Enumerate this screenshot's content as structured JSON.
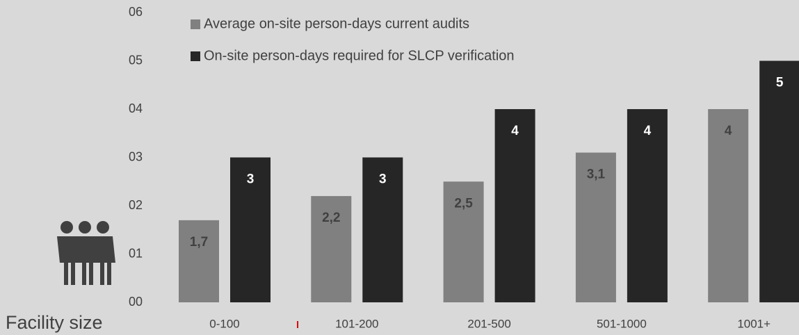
{
  "chart_data": {
    "type": "bar",
    "x_label": "Facility size",
    "categories": [
      "0-100",
      "101-200",
      "201-500",
      "501-1000",
      "1001+"
    ],
    "series": [
      {
        "name": "Average on-site person-days current audits",
        "color": "#808080",
        "label_color": "#404040",
        "values": [
          1.7,
          2.2,
          2.5,
          3.1,
          4
        ],
        "value_labels": [
          "1,7",
          "2,2",
          "2,5",
          "3,1",
          "4"
        ]
      },
      {
        "name": "On-site person-days required for SLCP verification",
        "color": "#262626",
        "label_color": "#ffffff",
        "values": [
          3,
          3,
          4,
          4,
          5
        ]
      }
    ],
    "ylim": [
      0,
      6
    ],
    "yticks": [
      {
        "value": 0,
        "label": "00"
      },
      {
        "value": 1,
        "label": "01"
      },
      {
        "value": 2,
        "label": "02"
      },
      {
        "value": 3,
        "label": "03"
      },
      {
        "value": 4,
        "label": "04"
      },
      {
        "value": 5,
        "label": "05"
      },
      {
        "value": 6,
        "label": "06"
      }
    ],
    "grid": false
  }
}
